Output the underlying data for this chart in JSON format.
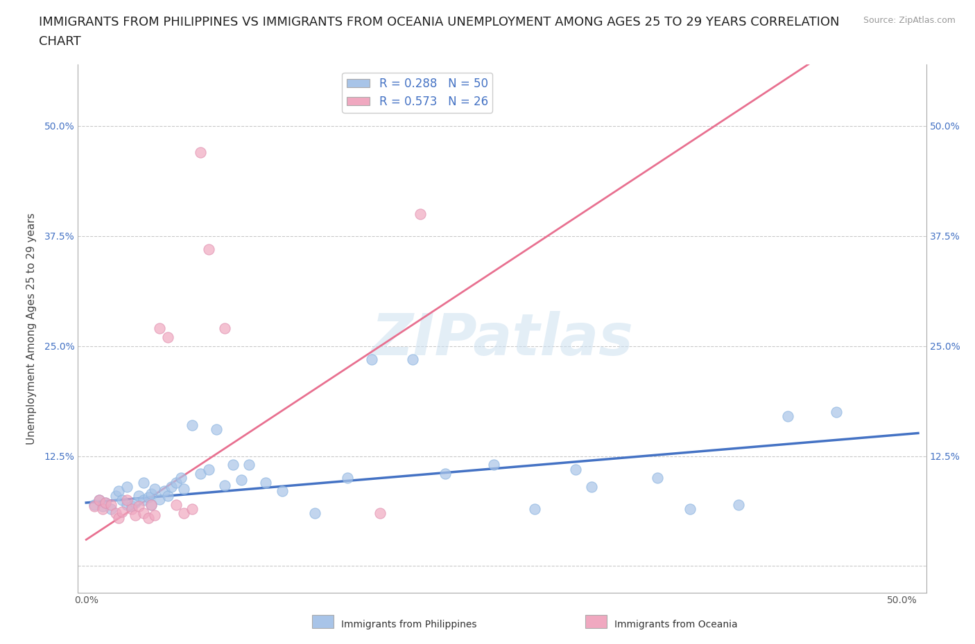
{
  "title": "IMMIGRANTS FROM PHILIPPINES VS IMMIGRANTS FROM OCEANIA UNEMPLOYMENT AMONG AGES 25 TO 29 YEARS CORRELATION\nCHART",
  "source": "Source: ZipAtlas.com",
  "ylabel": "Unemployment Among Ages 25 to 29 years",
  "xlim": [
    -0.005,
    0.515
  ],
  "ylim": [
    -0.03,
    0.57
  ],
  "philippines_R": 0.288,
  "philippines_N": 50,
  "oceania_R": 0.573,
  "oceania_N": 26,
  "philippines_color": "#a8c4e8",
  "oceania_color": "#f0a8c0",
  "philippines_line_color": "#4472c4",
  "oceania_line_color": "#e87090",
  "background_color": "#ffffff",
  "watermark": "ZIPatlas",
  "title_fontsize": 13,
  "axis_label_fontsize": 11,
  "tick_fontsize": 10,
  "legend_fontsize": 12,
  "phil_slope": 0.155,
  "phil_intercept": 0.072,
  "oce_slope": 1.22,
  "oce_intercept": 0.03,
  "philippines_x": [
    0.005,
    0.008,
    0.01,
    0.012,
    0.015,
    0.018,
    0.02,
    0.022,
    0.025,
    0.025,
    0.028,
    0.03,
    0.032,
    0.035,
    0.035,
    0.038,
    0.04,
    0.04,
    0.042,
    0.045,
    0.048,
    0.05,
    0.052,
    0.055,
    0.058,
    0.06,
    0.065,
    0.07,
    0.075,
    0.08,
    0.085,
    0.09,
    0.095,
    0.1,
    0.11,
    0.12,
    0.14,
    0.16,
    0.175,
    0.2,
    0.22,
    0.25,
    0.275,
    0.3,
    0.31,
    0.35,
    0.37,
    0.4,
    0.43,
    0.46
  ],
  "philippines_y": [
    0.07,
    0.075,
    0.068,
    0.072,
    0.065,
    0.08,
    0.085,
    0.075,
    0.07,
    0.09,
    0.068,
    0.072,
    0.08,
    0.075,
    0.095,
    0.078,
    0.082,
    0.07,
    0.088,
    0.076,
    0.085,
    0.08,
    0.09,
    0.095,
    0.1,
    0.088,
    0.16,
    0.105,
    0.11,
    0.155,
    0.092,
    0.115,
    0.098,
    0.115,
    0.095,
    0.085,
    0.06,
    0.1,
    0.235,
    0.235,
    0.105,
    0.115,
    0.065,
    0.11,
    0.09,
    0.1,
    0.065,
    0.07,
    0.17,
    0.175
  ],
  "oceania_x": [
    0.005,
    0.008,
    0.01,
    0.012,
    0.015,
    0.018,
    0.02,
    0.022,
    0.025,
    0.028,
    0.03,
    0.032,
    0.035,
    0.038,
    0.04,
    0.042,
    0.045,
    0.05,
    0.055,
    0.06,
    0.065,
    0.07,
    0.075,
    0.085,
    0.18,
    0.205
  ],
  "oceania_y": [
    0.068,
    0.075,
    0.065,
    0.072,
    0.07,
    0.06,
    0.055,
    0.062,
    0.075,
    0.065,
    0.058,
    0.068,
    0.06,
    0.055,
    0.07,
    0.058,
    0.27,
    0.26,
    0.07,
    0.06,
    0.065,
    0.47,
    0.36,
    0.27,
    0.06,
    0.4
  ]
}
